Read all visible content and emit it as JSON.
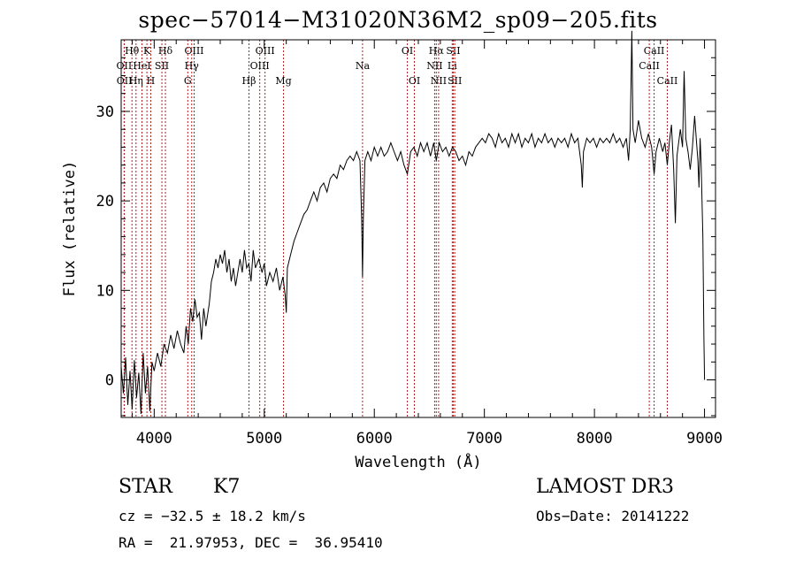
{
  "chart_data": {
    "type": "line",
    "title": "spec−57014−M31020N36M2_sp09−205.fits",
    "xlabel": "Wavelength (Å)",
    "ylabel": "Flux (relative)",
    "xlim": [
      3700,
      9100
    ],
    "ylim": [
      -4.2,
      38
    ],
    "x_ticks": [
      4000,
      5000,
      6000,
      7000,
      8000,
      9000
    ],
    "y_ticks": [
      0,
      10,
      20,
      30
    ],
    "series": [
      {
        "points": [
          [
            3700,
            1.5
          ],
          [
            3720,
            -1.5
          ],
          [
            3740,
            2.5
          ],
          [
            3760,
            -2.8
          ],
          [
            3780,
            1.0
          ],
          [
            3800,
            -3.3
          ],
          [
            3820,
            2.2
          ],
          [
            3840,
            -2.0
          ],
          [
            3860,
            0.8
          ],
          [
            3880,
            -3.8
          ],
          [
            3900,
            3.0
          ],
          [
            3920,
            -1.5
          ],
          [
            3940,
            1.5
          ],
          [
            3960,
            -3.5
          ],
          [
            3980,
            2.0
          ],
          [
            4000,
            1.0
          ],
          [
            4030,
            3.0
          ],
          [
            4060,
            1.5
          ],
          [
            4090,
            4.0
          ],
          [
            4120,
            3.0
          ],
          [
            4150,
            5.0
          ],
          [
            4180,
            3.5
          ],
          [
            4210,
            5.5
          ],
          [
            4240,
            4.0
          ],
          [
            4270,
            3.0
          ],
          [
            4290,
            6.0
          ],
          [
            4310,
            4.0
          ],
          [
            4330,
            8.0
          ],
          [
            4350,
            6.5
          ],
          [
            4370,
            9.0
          ],
          [
            4390,
            7.0
          ],
          [
            4410,
            7.5
          ],
          [
            4430,
            4.5
          ],
          [
            4450,
            8.0
          ],
          [
            4470,
            6.0
          ],
          [
            4500,
            8.5
          ],
          [
            4520,
            11.0
          ],
          [
            4540,
            12.0
          ],
          [
            4560,
            13.5
          ],
          [
            4580,
            12.5
          ],
          [
            4600,
            14.0
          ],
          [
            4620,
            13.0
          ],
          [
            4640,
            14.5
          ],
          [
            4660,
            12.0
          ],
          [
            4680,
            13.5
          ],
          [
            4700,
            11.0
          ],
          [
            4720,
            12.5
          ],
          [
            4740,
            10.5
          ],
          [
            4760,
            12.0
          ],
          [
            4780,
            13.5
          ],
          [
            4800,
            12.0
          ],
          [
            4820,
            14.5
          ],
          [
            4840,
            12.5
          ],
          [
            4860,
            13.0
          ],
          [
            4880,
            11.0
          ],
          [
            4900,
            14.5
          ],
          [
            4920,
            12.5
          ],
          [
            4950,
            13.5
          ],
          [
            4980,
            12.0
          ],
          [
            5000,
            13.0
          ],
          [
            5020,
            10.5
          ],
          [
            5050,
            12.0
          ],
          [
            5080,
            11.0
          ],
          [
            5110,
            12.5
          ],
          [
            5140,
            10.0
          ],
          [
            5170,
            11.5
          ],
          [
            5190,
            9.5
          ],
          [
            5200,
            7.5
          ],
          [
            5210,
            12.5
          ],
          [
            5240,
            14.0
          ],
          [
            5270,
            15.5
          ],
          [
            5300,
            16.5
          ],
          [
            5330,
            17.5
          ],
          [
            5360,
            18.5
          ],
          [
            5390,
            19.0
          ],
          [
            5420,
            20.0
          ],
          [
            5450,
            21.0
          ],
          [
            5480,
            20.0
          ],
          [
            5510,
            21.5
          ],
          [
            5540,
            22.0
          ],
          [
            5570,
            21.0
          ],
          [
            5600,
            22.5
          ],
          [
            5630,
            23.0
          ],
          [
            5660,
            22.5
          ],
          [
            5690,
            24.0
          ],
          [
            5720,
            23.5
          ],
          [
            5750,
            24.5
          ],
          [
            5780,
            25.0
          ],
          [
            5810,
            24.5
          ],
          [
            5840,
            25.5
          ],
          [
            5870,
            24.5
          ],
          [
            5885,
            18.0
          ],
          [
            5893,
            11.5
          ],
          [
            5900,
            18.0
          ],
          [
            5915,
            24.5
          ],
          [
            5940,
            25.5
          ],
          [
            5970,
            24.5
          ],
          [
            6000,
            26.0
          ],
          [
            6030,
            25.0
          ],
          [
            6060,
            26.0
          ],
          [
            6090,
            25.0
          ],
          [
            6120,
            25.5
          ],
          [
            6150,
            26.5
          ],
          [
            6180,
            25.5
          ],
          [
            6210,
            24.5
          ],
          [
            6240,
            25.5
          ],
          [
            6270,
            24.0
          ],
          [
            6300,
            23.0
          ],
          [
            6330,
            25.5
          ],
          [
            6360,
            26.0
          ],
          [
            6390,
            25.0
          ],
          [
            6420,
            26.5
          ],
          [
            6450,
            25.5
          ],
          [
            6480,
            26.5
          ],
          [
            6510,
            25.0
          ],
          [
            6540,
            26.5
          ],
          [
            6563,
            24.5
          ],
          [
            6590,
            26.5
          ],
          [
            6620,
            25.5
          ],
          [
            6650,
            26.0
          ],
          [
            6680,
            25.0
          ],
          [
            6710,
            26.0
          ],
          [
            6740,
            25.5
          ],
          [
            6770,
            24.5
          ],
          [
            6800,
            25.0
          ],
          [
            6830,
            24.0
          ],
          [
            6860,
            25.5
          ],
          [
            6890,
            25.0
          ],
          [
            6920,
            26.0
          ],
          [
            6950,
            26.5
          ],
          [
            6980,
            27.0
          ],
          [
            7010,
            26.5
          ],
          [
            7040,
            27.5
          ],
          [
            7070,
            27.0
          ],
          [
            7100,
            26.0
          ],
          [
            7130,
            27.5
          ],
          [
            7160,
            26.5
          ],
          [
            7190,
            27.0
          ],
          [
            7220,
            26.0
          ],
          [
            7250,
            27.5
          ],
          [
            7280,
            26.5
          ],
          [
            7310,
            27.5
          ],
          [
            7340,
            26.0
          ],
          [
            7370,
            27.0
          ],
          [
            7400,
            26.5
          ],
          [
            7430,
            27.5
          ],
          [
            7460,
            26.0
          ],
          [
            7490,
            27.0
          ],
          [
            7520,
            26.5
          ],
          [
            7550,
            27.5
          ],
          [
            7580,
            26.5
          ],
          [
            7610,
            27.0
          ],
          [
            7640,
            26.0
          ],
          [
            7670,
            27.0
          ],
          [
            7700,
            26.5
          ],
          [
            7730,
            27.0
          ],
          [
            7760,
            26.0
          ],
          [
            7790,
            27.5
          ],
          [
            7820,
            26.5
          ],
          [
            7850,
            27.0
          ],
          [
            7880,
            24.0
          ],
          [
            7890,
            21.5
          ],
          [
            7900,
            25.5
          ],
          [
            7930,
            27.0
          ],
          [
            7960,
            26.5
          ],
          [
            7990,
            27.0
          ],
          [
            8020,
            26.0
          ],
          [
            8050,
            27.0
          ],
          [
            8080,
            26.5
          ],
          [
            8110,
            27.0
          ],
          [
            8140,
            26.5
          ],
          [
            8170,
            27.5
          ],
          [
            8200,
            26.5
          ],
          [
            8230,
            27.0
          ],
          [
            8260,
            26.0
          ],
          [
            8290,
            27.0
          ],
          [
            8310,
            24.5
          ],
          [
            8325,
            28.0
          ],
          [
            8340,
            39.0
          ],
          [
            8350,
            28.0
          ],
          [
            8370,
            26.5
          ],
          [
            8400,
            29.0
          ],
          [
            8430,
            27.0
          ],
          [
            8460,
            26.0
          ],
          [
            8490,
            27.5
          ],
          [
            8520,
            26.0
          ],
          [
            8542,
            23.0
          ],
          [
            8560,
            25.5
          ],
          [
            8590,
            27.0
          ],
          [
            8620,
            25.5
          ],
          [
            8640,
            26.5
          ],
          [
            8662,
            24.0
          ],
          [
            8680,
            26.5
          ],
          [
            8700,
            28.5
          ],
          [
            8720,
            23.5
          ],
          [
            8735,
            17.5
          ],
          [
            8750,
            25.0
          ],
          [
            8780,
            28.0
          ],
          [
            8800,
            26.0
          ],
          [
            8815,
            34.5
          ],
          [
            8830,
            27.0
          ],
          [
            8850,
            25.5
          ],
          [
            8870,
            23.5
          ],
          [
            8890,
            26.0
          ],
          [
            8910,
            29.5
          ],
          [
            8925,
            27.0
          ],
          [
            8940,
            24.5
          ],
          [
            8950,
            21.5
          ],
          [
            8960,
            27.0
          ],
          [
            8970,
            24.0
          ],
          [
            8985,
            16.0
          ],
          [
            8995,
            4.5
          ],
          [
            9000,
            0.0
          ]
        ]
      }
    ],
    "lines": [
      {
        "label": "Hθ",
        "x": 3798,
        "row": 0
      },
      {
        "label": "OII",
        "x": 3727,
        "row": 1
      },
      {
        "label": "OII",
        "x": 3729,
        "row": 2
      },
      {
        "label": "HeI",
        "x": 3889,
        "row": 1
      },
      {
        "label": "Hη",
        "x": 3835,
        "row": 2
      },
      {
        "label": "K",
        "x": 3934,
        "row": 0
      },
      {
        "label": "H",
        "x": 3969,
        "row": 2
      },
      {
        "label": "SII",
        "x": 4070,
        "row": 1
      },
      {
        "label": "Hδ",
        "x": 4102,
        "row": 0
      },
      {
        "label": "OIII",
        "x": 4363,
        "row": 0
      },
      {
        "label": "Hγ",
        "x": 4341,
        "row": 1
      },
      {
        "label": "G",
        "x": 4305,
        "row": 2
      },
      {
        "label": "Hβ",
        "x": 4861,
        "row": 2
      },
      {
        "label": "OIII",
        "x": 5007,
        "row": 0
      },
      {
        "label": "OIII",
        "x": 4959,
        "row": 1
      },
      {
        "label": "Mg",
        "x": 5175,
        "row": 2
      },
      {
        "label": "Na",
        "x": 5893,
        "row": 1
      },
      {
        "label": "OI",
        "x": 6300,
        "row": 0
      },
      {
        "label": "OI",
        "x": 6364,
        "row": 2
      },
      {
        "label": "Hα",
        "x": 6563,
        "row": 0
      },
      {
        "label": "NII",
        "x": 6548,
        "row": 1
      },
      {
        "label": "NII",
        "x": 6584,
        "row": 2
      },
      {
        "label": "SII",
        "x": 6717,
        "row": 0
      },
      {
        "label": "Li",
        "x": 6708,
        "row": 1
      },
      {
        "label": "SII",
        "x": 6731,
        "row": 2
      },
      {
        "label": "CaII",
        "x": 8542,
        "row": 0
      },
      {
        "label": "CaII",
        "x": 8498,
        "row": 1
      },
      {
        "label": "CaII",
        "x": 8662,
        "row": 2
      }
    ],
    "colors": {
      "spectrum": "#000000",
      "lines": "#b22222"
    }
  },
  "info": {
    "class_label": "STAR",
    "subclass": "K7",
    "survey": "LAMOST DR3",
    "redshift_text": "cz = −32.5 ± 18.2 km/s",
    "obs_date": "Obs−Date: 20141222",
    "coords": "RA =  21.97953, DEC =  36.95410"
  }
}
